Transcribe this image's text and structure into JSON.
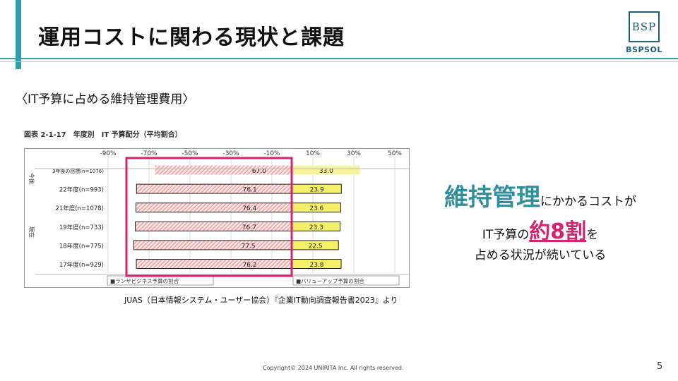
{
  "slide": {
    "title": "運用コストに関わる現状と課題",
    "subtitle": "〈IT予算に占める維持管理費用〉",
    "page_number": "5",
    "copyright": "Copyright© 2024 UNIRITA Inc. All rights reserved."
  },
  "logo": {
    "mark": "BSP",
    "name": "BSPSOL"
  },
  "figure": {
    "caption": "図表 2-1-17　年度別　IT 予算配分（平均割合）",
    "source": "JUAS（日本情報システム・ユーザー協会）『企業IT動向調査報告書2023』より",
    "group_label_future": "今後",
    "group_label_current": "現在",
    "legend": {
      "run": "■ランザビジネス予算の割合",
      "value": "■バリューアップ予算の割合"
    }
  },
  "chart_data": {
    "type": "bar",
    "orientation": "horizontal-diverging",
    "x_tick_labels": [
      "-90%",
      "-70%",
      "-50%",
      "-30%",
      "-10%",
      "10%",
      "30%",
      "50%"
    ],
    "categories": [
      "3年後の目標(n=1076)",
      "22年度(n=993)",
      "21年度(n=1078)",
      "19年度(n=733)",
      "18年度(n=775)",
      "17年度(n=929)"
    ],
    "series": [
      {
        "name": "ランザビジネス予算の割合",
        "values": [
          67.0,
          76.1,
          76.4,
          76.7,
          77.5,
          76.2
        ]
      },
      {
        "name": "バリューアップ予算の割合",
        "values": [
          33.0,
          23.9,
          23.6,
          23.3,
          22.5,
          23.8
        ]
      }
    ],
    "value_labels_run": [
      "67.0",
      "76.1",
      "76.4",
      "76.7",
      "77.5",
      "76.2"
    ],
    "value_labels_value": [
      "33.0",
      "23.9",
      "23.6",
      "23.3",
      "22.5",
      "23.8"
    ],
    "xlim": [
      -90,
      50
    ],
    "grid": true,
    "legend_position": "bottom",
    "highlight": "run-budget-region"
  },
  "callout": {
    "line1_emphasis": "維持管理",
    "line1_rest": "にかかるコストが",
    "line2_before": "IT予算の",
    "line2_emphasis": "約8割",
    "line2_after": "を",
    "line3": "占める状況が続いている"
  },
  "colors": {
    "accent_teal": "#2f9fa8",
    "callout_teal": "#2f8f9c",
    "highlight_pink": "#d4246f",
    "value_bar_yellow": "#f5f06a",
    "run_bar_hatch": "#e88a8a"
  }
}
